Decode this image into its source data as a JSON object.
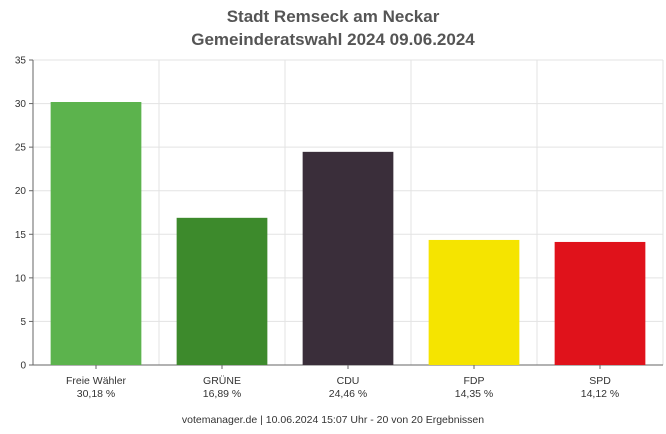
{
  "chart_data": {
    "type": "bar",
    "title": "Stadt Remseck am Neckar",
    "subtitle": "Gemeinderatswahl 2024 09.06.2024",
    "categories": [
      "Freie Wähler",
      "GRÜNE",
      "CDU",
      "FDP",
      "SPD"
    ],
    "values": [
      30.18,
      16.89,
      24.46,
      14.35,
      14.12
    ],
    "value_labels": [
      "30,18 %",
      "16,89 %",
      "24,46 %",
      "14,35 %",
      "14,12 %"
    ],
    "colors": [
      "#5cb34d",
      "#3d8a2c",
      "#3a2e3a",
      "#f5e400",
      "#e0121b"
    ],
    "ylim": [
      0,
      35
    ],
    "yticks": [
      0,
      5,
      10,
      15,
      20,
      25,
      30,
      35
    ],
    "grid": true,
    "xlabel": "",
    "ylabel": ""
  },
  "footer": "votemanager.de | 10.06.2024 15:07 Uhr - 20 von 20 Ergebnissen"
}
